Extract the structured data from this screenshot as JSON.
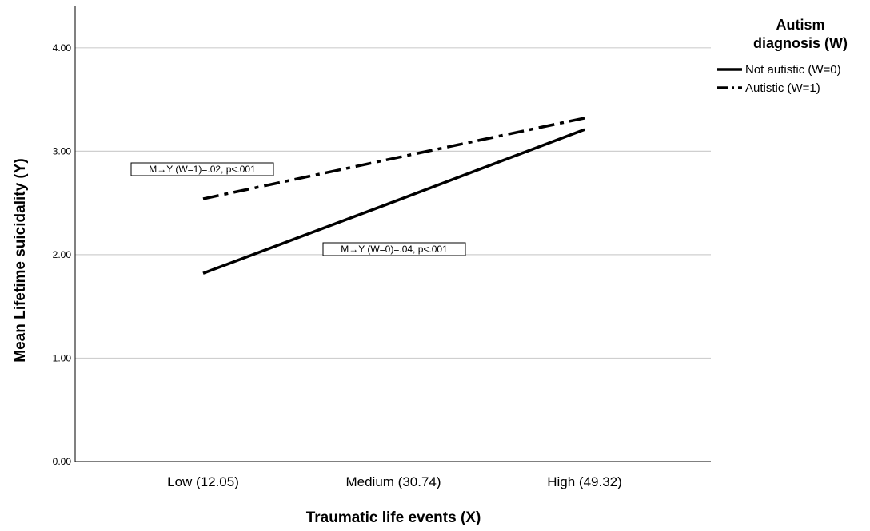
{
  "chart_data": {
    "type": "line",
    "categories": [
      "Low (12.05)",
      "Medium (30.74)",
      "High (49.32)"
    ],
    "series": [
      {
        "name": "Not autistic (W=0)",
        "values": [
          1.82,
          2.51,
          3.21
        ],
        "dash": "solid",
        "color": "#000000"
      },
      {
        "name": "Autistic (W=1)",
        "values": [
          2.54,
          2.93,
          3.32
        ],
        "dash": "dash-dot",
        "color": "#000000"
      }
    ],
    "xlabel": "Traumatic life events (X)",
    "ylabel": "Mean Lifetime suicidality (Y)",
    "ylim": [
      0,
      4.4
    ],
    "yticks": [
      "0.00",
      "1.00",
      "2.00",
      "3.00",
      "4.00"
    ],
    "grid": true,
    "legend": {
      "title_line1": "Autism",
      "title_line2": "diagnosis (W)",
      "placement": "right"
    },
    "annotations": [
      {
        "text": "M→Y (W=1)=.02, p<.001",
        "series": 1
      },
      {
        "text": "M→Y (W=0)=.04, p<.001",
        "series": 0
      }
    ]
  }
}
